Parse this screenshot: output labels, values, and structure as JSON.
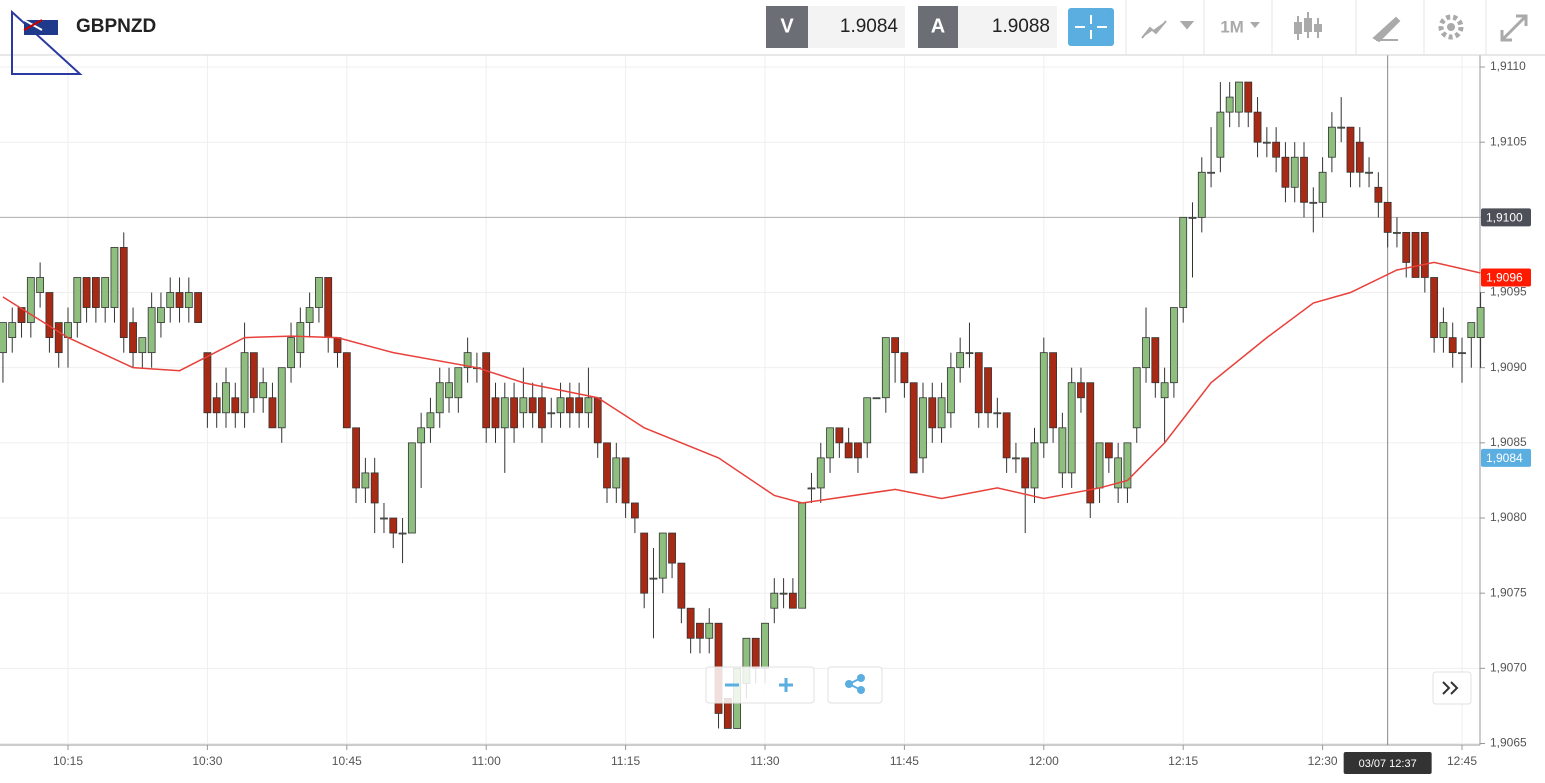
{
  "header": {
    "symbol": "GBPNZD",
    "bid_label": "V",
    "bid": 1.9084,
    "ask_label": "A",
    "ask": 1.9088,
    "timeframe": "1M"
  },
  "chart_data": {
    "type": "candlestick",
    "x": [
      "10:08",
      "10:09",
      "10:10",
      "10:11",
      "10:12",
      "10:13",
      "10:14",
      "10:15",
      "10:16",
      "10:17",
      "10:18",
      "10:19",
      "10:20",
      "10:21",
      "10:22",
      "10:23",
      "10:24",
      "10:25",
      "10:26",
      "10:27",
      "10:28",
      "10:29",
      "10:30",
      "10:31",
      "10:32",
      "10:33",
      "10:34",
      "10:35",
      "10:36",
      "10:37",
      "10:38",
      "10:39",
      "10:40",
      "10:41",
      "10:42",
      "10:43",
      "10:44",
      "10:45",
      "10:46",
      "10:47",
      "10:48",
      "10:49",
      "10:50",
      "10:51",
      "10:52",
      "10:53",
      "10:54",
      "10:55",
      "10:56",
      "10:57",
      "10:58",
      "10:59",
      "11:00",
      "11:01",
      "11:02",
      "11:03",
      "11:04",
      "11:05",
      "11:06",
      "11:07",
      "11:08",
      "11:09",
      "11:10",
      "11:11",
      "11:12",
      "11:13",
      "11:14",
      "11:15",
      "11:16",
      "11:17",
      "11:18",
      "11:19",
      "11:20",
      "11:21",
      "11:22",
      "11:23",
      "11:24",
      "11:25",
      "11:26",
      "11:27",
      "11:28",
      "11:29",
      "11:30",
      "11:31",
      "11:32",
      "11:33",
      "11:34",
      "11:35",
      "11:36",
      "11:37",
      "11:38",
      "11:39",
      "11:40",
      "11:41",
      "11:42",
      "11:43",
      "11:44",
      "11:45",
      "11:46",
      "11:47",
      "11:48",
      "11:49",
      "11:50",
      "11:51",
      "11:52",
      "11:53",
      "11:54",
      "11:55",
      "11:56",
      "11:57",
      "11:58",
      "11:59",
      "12:00",
      "12:01",
      "12:02",
      "12:03",
      "12:04",
      "12:05",
      "12:06",
      "12:07",
      "12:08",
      "12:09",
      "12:10",
      "12:11",
      "12:12",
      "12:13",
      "12:14",
      "12:15",
      "12:16",
      "12:17",
      "12:18",
      "12:19",
      "12:20",
      "12:21",
      "12:22",
      "12:23",
      "12:24",
      "12:25",
      "12:26",
      "12:27",
      "12:28",
      "12:29",
      "12:30",
      "12:31",
      "12:32",
      "12:33",
      "12:34",
      "12:35",
      "12:36",
      "12:37",
      "12:38",
      "12:39",
      "12:40",
      "12:41",
      "12:42",
      "12:43",
      "12:44",
      "12:45",
      "12:46",
      "12:47"
    ],
    "open": [
      1.9091,
      1.9092,
      1.9094,
      1.9093,
      1.9095,
      1.9095,
      1.9093,
      1.9092,
      1.9093,
      1.9096,
      1.9096,
      1.9094,
      1.9094,
      1.9098,
      1.9093,
      1.9091,
      1.9091,
      1.9093,
      1.9094,
      1.9095,
      1.9094,
      1.9095,
      1.9091,
      1.9088,
      1.9087,
      1.9088,
      1.9087,
      1.9091,
      1.9088,
      1.9088,
      1.9086,
      1.909,
      1.9091,
      1.9093,
      1.9094,
      1.9096,
      1.9092,
      1.9091,
      1.9086,
      1.9082,
      1.9083,
      1.908,
      1.908,
      1.9079,
      1.9079,
      1.9085,
      1.9086,
      1.9087,
      1.9088,
      1.9088,
      1.909,
      1.909,
      1.9091,
      1.9088,
      1.9086,
      1.9088,
      1.9087,
      1.9088,
      1.9088,
      1.9087,
      1.9087,
      1.9088,
      1.9088,
      1.9087,
      1.9088,
      1.9085,
      1.9082,
      1.9084,
      1.9081,
      1.9079,
      1.9076,
      1.9076,
      1.9079,
      1.9077,
      1.9074,
      1.9073,
      1.9072,
      1.9073,
      1.9068,
      1.9066,
      1.9069,
      1.9072,
      1.907,
      1.9074,
      1.9075,
      1.9075,
      1.9074,
      1.9082,
      1.9082,
      1.9084,
      1.9086,
      1.9085,
      1.9085,
      1.9085,
      1.9088,
      1.9088,
      1.9092,
      1.9091,
      1.9089,
      1.9084,
      1.9088,
      1.9086,
      1.9087,
      1.909,
      1.9091,
      1.9091,
      1.909,
      1.9087,
      1.9087,
      1.9084,
      1.9084,
      1.9082,
      1.9085,
      1.9091,
      1.9083,
      1.9083,
      1.9089,
      1.9089,
      1.9082,
      1.9085,
      1.9082,
      1.9082,
      1.9086,
      1.909,
      1.9092,
      1.9088,
      1.9089,
      1.9094,
      1.91,
      1.91,
      1.9103,
      1.9104,
      1.9107,
      1.9107,
      1.9109,
      1.9107,
      1.9105,
      1.9105,
      1.9104,
      1.9102,
      1.9104,
      1.9101,
      1.9101,
      1.9104,
      1.9106,
      1.9106,
      1.9105,
      1.9103,
      1.9102,
      1.9101,
      1.9099,
      1.9099,
      1.9099,
      1.9099,
      1.9096,
      1.9092,
      1.9092,
      1.9091,
      1.9092,
      1.9092
    ],
    "high": [
      1.9093,
      1.9094,
      1.9094,
      1.9096,
      1.9097,
      1.9095,
      1.9093,
      1.9094,
      1.9096,
      1.9096,
      1.9096,
      1.9096,
      1.9098,
      1.9099,
      1.9094,
      1.9092,
      1.9095,
      1.9095,
      1.9096,
      1.9096,
      1.9096,
      1.9095,
      1.9091,
      1.9089,
      1.909,
      1.9089,
      1.9093,
      1.9091,
      1.909,
      1.9089,
      1.909,
      1.9093,
      1.9094,
      1.9095,
      1.9096,
      1.9096,
      1.9092,
      1.9091,
      1.9086,
      1.9084,
      1.9084,
      1.9081,
      1.908,
      1.908,
      1.9085,
      1.9087,
      1.9088,
      1.909,
      1.909,
      1.909,
      1.9092,
      1.9091,
      1.9091,
      1.9089,
      1.9089,
      1.9089,
      1.909,
      1.9089,
      1.9089,
      1.9088,
      1.9089,
      1.9089,
      1.9089,
      1.909,
      1.9088,
      1.9085,
      1.9085,
      1.9084,
      1.9081,
      1.9079,
      1.9078,
      1.9079,
      1.9079,
      1.9077,
      1.9074,
      1.9073,
      1.9074,
      1.9073,
      1.9068,
      1.907,
      1.9072,
      1.9072,
      1.9073,
      1.9076,
      1.9076,
      1.9076,
      1.9081,
      1.9083,
      1.9085,
      1.9086,
      1.9086,
      1.9086,
      1.9085,
      1.9088,
      1.9088,
      1.9092,
      1.9092,
      1.9091,
      1.9089,
      1.9089,
      1.9089,
      1.9089,
      1.9091,
      1.9092,
      1.9093,
      1.9091,
      1.909,
      1.9088,
      1.9087,
      1.9085,
      1.9084,
      1.9086,
      1.9092,
      1.9091,
      1.9087,
      1.909,
      1.909,
      1.9089,
      1.9085,
      1.9085,
      1.9085,
      1.9085,
      1.909,
      1.9094,
      1.9092,
      1.909,
      1.9094,
      1.91,
      1.9101,
      1.9104,
      1.9106,
      1.9109,
      1.9109,
      1.9109,
      1.9109,
      1.9108,
      1.9106,
      1.9106,
      1.9105,
      1.9105,
      1.9105,
      1.9102,
      1.9104,
      1.9107,
      1.9108,
      1.9106,
      1.9106,
      1.9104,
      1.9103,
      1.9101,
      1.91,
      1.9099,
      1.9099,
      1.9099,
      1.9096,
      1.9094,
      1.9093,
      1.9092,
      1.9093,
      1.9095
    ],
    "low": [
      1.9089,
      1.9091,
      1.9092,
      1.9092,
      1.9094,
      1.9091,
      1.909,
      1.909,
      1.9092,
      1.9093,
      1.9093,
      1.9093,
      1.9093,
      1.9091,
      1.909,
      1.909,
      1.909,
      1.9092,
      1.9093,
      1.9093,
      1.9093,
      1.9093,
      1.9086,
      1.9086,
      1.9086,
      1.9086,
      1.9086,
      1.9087,
      1.9087,
      1.9086,
      1.9085,
      1.9089,
      1.909,
      1.9092,
      1.9093,
      1.9091,
      1.909,
      1.9086,
      1.9081,
      1.9081,
      1.9079,
      1.9079,
      1.9078,
      1.9077,
      1.9079,
      1.9082,
      1.9085,
      1.9086,
      1.9087,
      1.9087,
      1.9089,
      1.9089,
      1.9085,
      1.9085,
      1.9083,
      1.9085,
      1.9086,
      1.9086,
      1.9085,
      1.9086,
      1.9086,
      1.9086,
      1.9086,
      1.9086,
      1.9084,
      1.9081,
      1.9081,
      1.908,
      1.9079,
      1.9074,
      1.9072,
      1.9075,
      1.9076,
      1.9073,
      1.9071,
      1.9071,
      1.9071,
      1.9066,
      1.9066,
      1.9066,
      1.9068,
      1.9069,
      1.9069,
      1.9073,
      1.9074,
      1.9074,
      1.9074,
      1.9081,
      1.9081,
      1.9083,
      1.9084,
      1.9084,
      1.9083,
      1.9084,
      1.9088,
      1.9087,
      1.9089,
      1.9088,
      1.9083,
      1.9083,
      1.9085,
      1.9085,
      1.9086,
      1.9089,
      1.909,
      1.9086,
      1.9086,
      1.9086,
      1.9083,
      1.9083,
      1.9079,
      1.9081,
      1.9084,
      1.9085,
      1.9082,
      1.9082,
      1.9087,
      1.908,
      1.9081,
      1.9083,
      1.9081,
      1.9081,
      1.9085,
      1.9089,
      1.9088,
      1.9085,
      1.9088,
      1.9093,
      1.9096,
      1.9099,
      1.9102,
      1.9103,
      1.9106,
      1.9106,
      1.9106,
      1.9104,
      1.9104,
      1.9103,
      1.9101,
      1.9101,
      1.91,
      1.9099,
      1.91,
      1.9103,
      1.9105,
      1.9102,
      1.9102,
      1.9102,
      1.91,
      1.9098,
      1.9098,
      1.9096,
      1.9096,
      1.9095,
      1.9091,
      1.9091,
      1.909,
      1.9089,
      1.909,
      1.909
    ],
    "close": [
      1.9093,
      1.9093,
      1.9093,
      1.9096,
      1.9096,
      1.9092,
      1.9091,
      1.9093,
      1.9096,
      1.9094,
      1.9094,
      1.9096,
      1.9098,
      1.9092,
      1.9091,
      1.9092,
      1.9094,
      1.9094,
      1.9095,
      1.9094,
      1.9095,
      1.9093,
      1.9087,
      1.9087,
      1.9089,
      1.9087,
      1.9091,
      1.9088,
      1.9089,
      1.9086,
      1.909,
      1.9092,
      1.9093,
      1.9094,
      1.9096,
      1.9092,
      1.9091,
      1.9086,
      1.9082,
      1.9083,
      1.9081,
      1.908,
      1.9079,
      1.9079,
      1.9085,
      1.9086,
      1.9087,
      1.9089,
      1.9089,
      1.909,
      1.9091,
      1.909,
      1.9086,
      1.9086,
      1.9088,
      1.9086,
      1.9088,
      1.9087,
      1.9086,
      1.9087,
      1.9088,
      1.9087,
      1.9087,
      1.9088,
      1.9085,
      1.9082,
      1.9084,
      1.9081,
      1.908,
      1.9075,
      1.9076,
      1.9079,
      1.9077,
      1.9074,
      1.9072,
      1.9072,
      1.9073,
      1.9067,
      1.9066,
      1.907,
      1.9072,
      1.907,
      1.9073,
      1.9075,
      1.9075,
      1.9074,
      1.9081,
      1.9082,
      1.9084,
      1.9086,
      1.9085,
      1.9084,
      1.9084,
      1.9088,
      1.9088,
      1.9092,
      1.9091,
      1.9089,
      1.9083,
      1.9088,
      1.9086,
      1.9088,
      1.909,
      1.9091,
      1.9091,
      1.9087,
      1.9087,
      1.9087,
      1.9084,
      1.9084,
      1.9082,
      1.9085,
      1.9091,
      1.9086,
      1.9086,
      1.9089,
      1.9088,
      1.9081,
      1.9085,
      1.9084,
      1.9084,
      1.9085,
      1.909,
      1.9092,
      1.9089,
      1.9089,
      1.9094,
      1.91,
      1.91,
      1.9103,
      1.9103,
      1.9107,
      1.9108,
      1.9109,
      1.9107,
      1.9105,
      1.9105,
      1.9104,
      1.9102,
      1.9104,
      1.9101,
      1.9101,
      1.9103,
      1.9106,
      1.9106,
      1.9103,
      1.9103,
      1.9103,
      1.9101,
      1.9099,
      1.9099,
      1.9097,
      1.9096,
      1.9096,
      1.9092,
      1.9093,
      1.9091,
      1.9091,
      1.9093,
      1.9094
    ],
    "up_color": "#8fbf7f",
    "down_color": "#a82a14",
    "series": [
      {
        "type": "line",
        "color": "#e8403a",
        "x": [
          "10:08",
          "10:15",
          "10:22",
          "10:27",
          "10:34",
          "10:39",
          "10:44",
          "10:50",
          "10:59",
          "11:04",
          "11:12",
          "11:17",
          "11:25",
          "11:31",
          "11:34",
          "11:44",
          "11:49",
          "11:55",
          "12:00",
          "12:06",
          "12:09",
          "12:13",
          "12:18",
          "12:24",
          "12:29",
          "12:33",
          "12:38",
          "12:42",
          "12:47"
        ],
        "values": [
          1.90947,
          1.9092,
          1.909,
          1.90898,
          1.9092,
          1.90921,
          1.9092,
          1.9091,
          1.909,
          1.9089,
          1.9088,
          1.9086,
          1.9084,
          1.90815,
          1.9081,
          1.90819,
          1.90813,
          1.9082,
          1.90813,
          1.9082,
          1.90825,
          1.9085,
          1.9089,
          1.9092,
          1.90943,
          1.9095,
          1.90965,
          1.9097,
          1.90963
        ]
      }
    ],
    "ylim": [
      1.90649,
      1.91108
    ],
    "yticks": [
      {
        "value": 1.9065,
        "label": "1,9065"
      },
      {
        "value": 1.907,
        "label": "1,9070"
      },
      {
        "value": 1.9075,
        "label": "1,9075"
      },
      {
        "value": 1.908,
        "label": "1,9080"
      },
      {
        "value": 1.9085,
        "label": "1,9085"
      },
      {
        "value": 1.909,
        "label": "1,9090"
      },
      {
        "value": 1.9095,
        "label": "1,9095"
      },
      {
        "value": 1.91,
        "label": "1,9100"
      },
      {
        "value": 1.9105,
        "label": "1,9105"
      },
      {
        "value": 1.911,
        "label": "1,9110"
      }
    ],
    "xticks": [
      "10:15",
      "10:30",
      "10:45",
      "11:00",
      "11:15",
      "11:30",
      "11:45",
      "12:00",
      "12:15",
      "12:30",
      "12:45"
    ],
    "grid": true,
    "markers": [
      {
        "value": 1.91,
        "label": "1,9100",
        "color": "#4d5058",
        "line": true
      },
      {
        "value": 1.9096,
        "label": "1,9096",
        "color": "#ff1a00"
      },
      {
        "value": 1.9084,
        "label": "1,9084",
        "color": "#5aaee0"
      }
    ],
    "crosshair": {
      "x": "12:37",
      "label": "03/07 12:37"
    }
  }
}
